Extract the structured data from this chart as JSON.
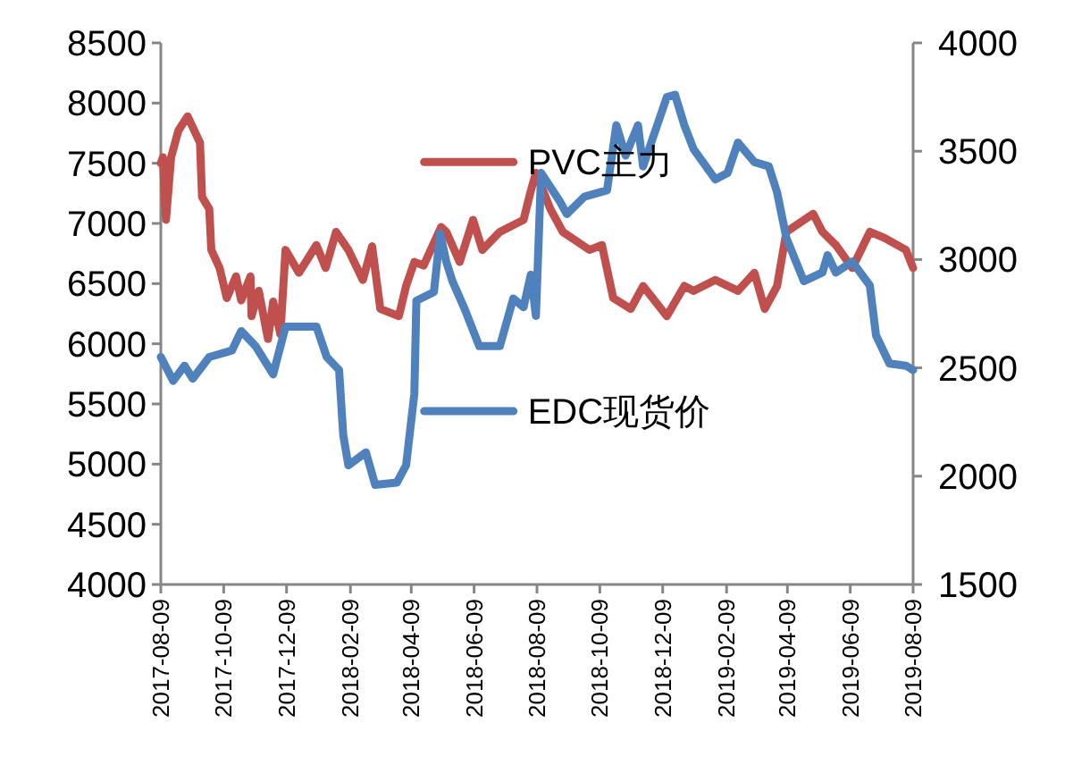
{
  "chart_data": {
    "type": "line",
    "legend": "center",
    "grid": false,
    "marker": "none",
    "line_style": "solid",
    "xlim": [
      "2017-08-09",
      "2019-08-09"
    ],
    "xticks": [
      "2017-08-09",
      "2017-10-09",
      "2017-12-09",
      "2018-02-09",
      "2018-04-09",
      "2018-06-09",
      "2018-08-09",
      "2018-10-09",
      "2018-12-09",
      "2019-02-09",
      "2019-04-09",
      "2019-06-09",
      "2019-08-09"
    ],
    "ylim": [
      4000,
      8500
    ],
    "yticks": [
      4000,
      4500,
      5000,
      5500,
      6000,
      6500,
      7000,
      7500,
      8000,
      8500
    ],
    "y2lim": [
      1500,
      4000
    ],
    "y2ticks": [
      1500,
      2000,
      2500,
      3000,
      3500,
      4000
    ],
    "series": [
      {
        "name": "PVC主力",
        "color": "#c0504d",
        "x": [
          "2017-08-09",
          "2017-08-11",
          "2017-08-14",
          "2017-08-19",
          "2017-08-26",
          "2017-09-04",
          "2017-09-16",
          "2017-09-18",
          "2017-09-25",
          "2017-09-27",
          "2017-10-05",
          "2017-10-12",
          "2017-10-21",
          "2017-10-26",
          "2017-11-04",
          "2017-11-05",
          "2017-11-12",
          "2017-11-21",
          "2017-11-26",
          "2017-12-03",
          "2017-12-08",
          "2017-12-21",
          "2018-01-07",
          "2018-01-16",
          "2018-01-26",
          "2018-02-07",
          "2018-02-21",
          "2018-03-02",
          "2018-03-10",
          "2018-03-28",
          "2018-04-04",
          "2018-04-12",
          "2018-04-21",
          "2018-05-08",
          "2018-05-13",
          "2018-05-26",
          "2018-06-08",
          "2018-06-17",
          "2018-07-04",
          "2018-07-27",
          "2018-08-03",
          "2018-08-08",
          "2018-08-22",
          "2018-09-03",
          "2018-09-29",
          "2018-10-11",
          "2018-10-22",
          "2018-11-08",
          "2018-11-20",
          "2018-12-13",
          "2018-12-30",
          "2019-01-08",
          "2019-01-29",
          "2019-02-20",
          "2019-03-08",
          "2019-03-18",
          "2019-03-30",
          "2019-04-08",
          "2019-05-04",
          "2019-05-13",
          "2019-05-26",
          "2019-06-11",
          "2019-06-28",
          "2019-07-12",
          "2019-08-02",
          "2019-08-09"
        ],
        "values": [
          7500,
          7550,
          7030,
          7550,
          7770,
          7890,
          7670,
          7220,
          7120,
          6780,
          6630,
          6380,
          6560,
          6360,
          6560,
          6230,
          6440,
          6040,
          6350,
          6080,
          6780,
          6590,
          6820,
          6630,
          6930,
          6780,
          6530,
          6810,
          6290,
          6230,
          6480,
          6680,
          6650,
          6970,
          6930,
          6680,
          7030,
          6780,
          6930,
          7030,
          7270,
          7420,
          7120,
          6930,
          6780,
          6820,
          6380,
          6290,
          6480,
          6230,
          6480,
          6440,
          6530,
          6440,
          6590,
          6290,
          6480,
          6930,
          7080,
          6930,
          6820,
          6630,
          6930,
          6880,
          6780,
          6630
        ]
      },
      {
        "name": "EDC现货价",
        "color": "#4f81bd",
        "axis": "y2",
        "x": [
          "2017-08-09",
          "2017-08-21",
          "2017-09-01",
          "2017-09-09",
          "2017-09-25",
          "2017-10-17",
          "2017-10-26",
          "2017-11-09",
          "2017-11-26",
          "2017-12-08",
          "2018-01-07",
          "2018-01-17",
          "2018-01-29",
          "2018-02-02",
          "2018-02-07",
          "2018-02-24",
          "2018-03-05",
          "2018-03-26",
          "2018-04-04",
          "2018-04-12",
          "2018-04-14",
          "2018-05-01",
          "2018-05-07",
          "2018-05-13",
          "2018-05-19",
          "2018-05-31",
          "2018-06-14",
          "2018-07-04",
          "2018-07-17",
          "2018-07-27",
          "2018-08-03",
          "2018-08-08",
          "2018-08-13",
          "2018-08-31",
          "2018-09-07",
          "2018-09-24",
          "2018-10-16",
          "2018-10-25",
          "2018-11-03",
          "2018-11-15",
          "2018-11-20",
          "2018-12-13",
          "2018-12-21",
          "2018-12-30",
          "2019-01-08",
          "2019-01-29",
          "2019-02-10",
          "2019-02-20",
          "2019-03-08",
          "2019-03-22",
          "2019-03-30",
          "2019-04-08",
          "2019-04-25",
          "2019-05-13",
          "2019-05-18",
          "2019-05-26",
          "2019-06-11",
          "2019-06-28",
          "2019-07-04",
          "2019-07-17",
          "2019-08-02",
          "2019-08-09"
        ],
        "values": [
          2550,
          2440,
          2510,
          2450,
          2550,
          2580,
          2670,
          2600,
          2470,
          2690,
          2690,
          2550,
          2490,
          2190,
          2050,
          2110,
          1960,
          1970,
          2050,
          2380,
          2810,
          2850,
          3120,
          2990,
          2900,
          2770,
          2600,
          2600,
          2820,
          2780,
          2930,
          2740,
          3400,
          3270,
          3210,
          3290,
          3320,
          3620,
          3480,
          3620,
          3430,
          3750,
          3760,
          3620,
          3510,
          3370,
          3400,
          3540,
          3450,
          3430,
          3310,
          3100,
          2900,
          2940,
          3020,
          2940,
          2990,
          2880,
          2650,
          2520,
          2510,
          2490
        ]
      }
    ]
  }
}
